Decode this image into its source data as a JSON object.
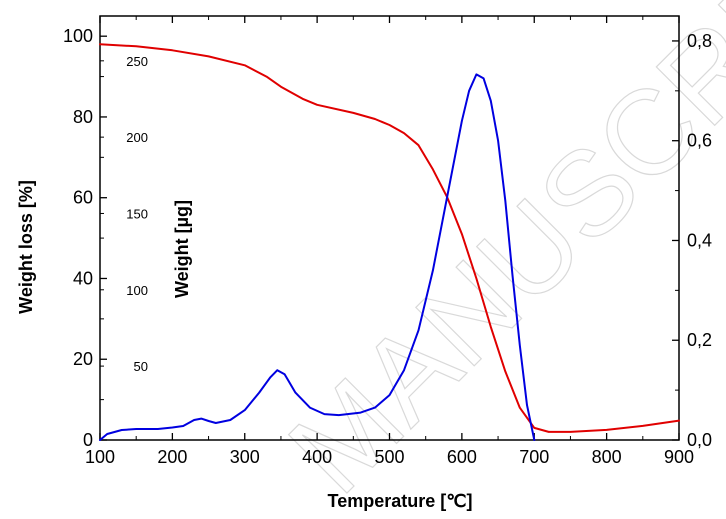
{
  "chart_data": {
    "type": "line",
    "xlabel": "Temperature [℃]",
    "ylabel_left": "Weight loss [%]",
    "ylabel_inner": "Weight [µg]",
    "xlim": [
      100,
      900
    ],
    "ylim_left": [
      0,
      105
    ],
    "ylim_right": [
      0,
      0.85
    ],
    "x_ticks": [
      "100",
      "200",
      "300",
      "400",
      "500",
      "600",
      "700",
      "800",
      "900"
    ],
    "y_left_ticks": [
      "0",
      "20",
      "40",
      "60",
      "80",
      "100"
    ],
    "y_inner_ticks": [
      "50",
      "100",
      "150",
      "200",
      "250"
    ],
    "y_right_ticks": [
      "0,0",
      "0,2",
      "0,4",
      "0,6",
      "0,8"
    ],
    "grid": false,
    "watermark": "MANUSCRIPT",
    "series": [
      {
        "axis": "left",
        "color": "#e00000",
        "points": [
          [
            100,
            98
          ],
          [
            150,
            97.5
          ],
          [
            200,
            96.5
          ],
          [
            250,
            95
          ],
          [
            300,
            92.8
          ],
          [
            330,
            90
          ],
          [
            350,
            87.5
          ],
          [
            380,
            84.5
          ],
          [
            400,
            83
          ],
          [
            450,
            81
          ],
          [
            480,
            79.5
          ],
          [
            500,
            78
          ],
          [
            520,
            76
          ],
          [
            540,
            73
          ],
          [
            560,
            67
          ],
          [
            580,
            60
          ],
          [
            600,
            51
          ],
          [
            620,
            40
          ],
          [
            640,
            28
          ],
          [
            660,
            17
          ],
          [
            680,
            8
          ],
          [
            700,
            3
          ],
          [
            720,
            2
          ],
          [
            750,
            2
          ],
          [
            800,
            2.5
          ],
          [
            850,
            3.5
          ],
          [
            900,
            4.8
          ]
        ]
      },
      {
        "axis": "right",
        "color": "#0000e0",
        "points": [
          [
            100,
            0
          ],
          [
            110,
            0.012
          ],
          [
            130,
            0.02
          ],
          [
            150,
            0.022
          ],
          [
            180,
            0.022
          ],
          [
            200,
            0.025
          ],
          [
            215,
            0.028
          ],
          [
            230,
            0.04
          ],
          [
            240,
            0.043
          ],
          [
            250,
            0.038
          ],
          [
            260,
            0.034
          ],
          [
            280,
            0.04
          ],
          [
            300,
            0.06
          ],
          [
            320,
            0.095
          ],
          [
            335,
            0.125
          ],
          [
            345,
            0.14
          ],
          [
            355,
            0.132
          ],
          [
            370,
            0.095
          ],
          [
            390,
            0.065
          ],
          [
            410,
            0.052
          ],
          [
            430,
            0.05
          ],
          [
            460,
            0.055
          ],
          [
            480,
            0.065
          ],
          [
            500,
            0.09
          ],
          [
            520,
            0.14
          ],
          [
            540,
            0.22
          ],
          [
            560,
            0.34
          ],
          [
            580,
            0.49
          ],
          [
            600,
            0.64
          ],
          [
            610,
            0.7
          ],
          [
            620,
            0.733
          ],
          [
            630,
            0.725
          ],
          [
            640,
            0.68
          ],
          [
            650,
            0.6
          ],
          [
            660,
            0.48
          ],
          [
            670,
            0.33
          ],
          [
            680,
            0.19
          ],
          [
            690,
            0.07
          ],
          [
            700,
            0.0
          ]
        ]
      }
    ]
  }
}
